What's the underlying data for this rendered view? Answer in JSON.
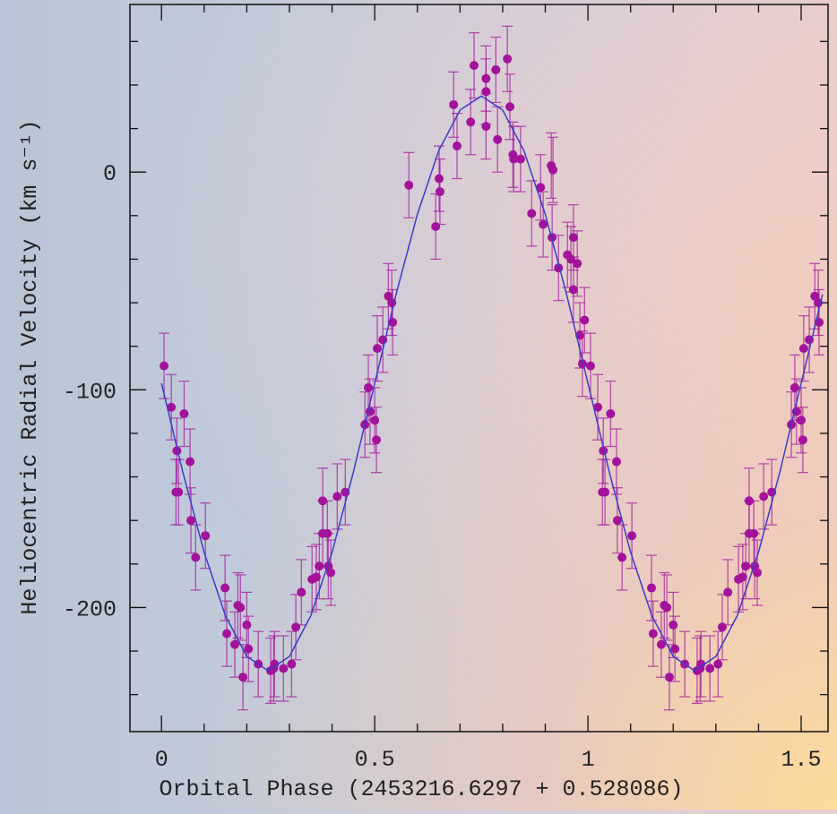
{
  "chart_data": {
    "type": "scatter",
    "xlabel": "Orbital Phase (2453216.6297 + 0.528086)",
    "ylabel": "Heliocentric Radial Velocity (km s⁻¹)",
    "xlim": [
      -0.074,
      1.563
    ],
    "ylim": [
      -257,
      77
    ],
    "xticks": [
      0,
      0.5,
      1,
      1.5
    ],
    "yticks": [
      -200,
      -100,
      0
    ],
    "xminorticks": [
      0.1,
      0.2,
      0.3,
      0.4,
      0.6,
      0.7,
      0.8,
      0.9,
      1.1,
      1.2,
      1.3,
      1.4
    ],
    "yminorticks": [
      -240,
      -220,
      -180,
      -160,
      -140,
      -120,
      -80,
      -60,
      -40,
      -20,
      20,
      40,
      60
    ],
    "series": [
      {
        "color": "#a3129b",
        "yerr": 15,
        "x": [
          0.006,
          0.023,
          0.036,
          0.034,
          0.04,
          0.053,
          0.067,
          0.069,
          0.08,
          0.103,
          0.149,
          0.153,
          0.172,
          0.179,
          0.185,
          0.191,
          0.2,
          0.204,
          0.227,
          0.256,
          0.263,
          0.265,
          0.286,
          0.305,
          0.315,
          0.328,
          0.353,
          0.363,
          0.37,
          0.378,
          0.378,
          0.389,
          0.391,
          0.397,
          0.412,
          0.431,
          0.477,
          0.485,
          0.489,
          0.5,
          0.504,
          0.506,
          0.519,
          0.532,
          0.54,
          0.542,
          0.58,
          0.643,
          0.651,
          0.653,
          0.685,
          0.693,
          0.725,
          0.733,
          0.761,
          0.761,
          0.761,
          0.784,
          0.788,
          0.811,
          0.817,
          0.824,
          0.826,
          0.842,
          0.868,
          0.889,
          0.895,
          0.914,
          0.918,
          0.916,
          0.931,
          0.952,
          0.96,
          0.966,
          0.966,
          0.975,
          0.981,
          0.987,
          0.992,
          1.006,
          1.023,
          1.036,
          1.034,
          1.04,
          1.053,
          1.067,
          1.069,
          1.08,
          1.103,
          1.149,
          1.153,
          1.172,
          1.179,
          1.185,
          1.191,
          1.2,
          1.204,
          1.227,
          1.256,
          1.263,
          1.265,
          1.286,
          1.305,
          1.315,
          1.328,
          1.353,
          1.363,
          1.37,
          1.378,
          1.378,
          1.389,
          1.391,
          1.397,
          1.412,
          1.431,
          1.477,
          1.485,
          1.489,
          1.5,
          1.504,
          1.506,
          1.519,
          1.532,
          1.54,
          1.542
        ],
        "values": [
          -89,
          -108,
          -128,
          -147,
          -147,
          -111,
          -133,
          -160,
          -177,
          -167,
          -191,
          -212,
          -217,
          -199,
          -200,
          -232,
          -208,
          -219,
          -226,
          -229,
          -228,
          -226,
          -228,
          -226,
          -209,
          -193,
          -187,
          -186,
          -181,
          -166,
          -151,
          -166,
          -181,
          -184,
          -149,
          -147,
          -116,
          -99,
          -110,
          -114,
          -123,
          -81,
          -77,
          -57,
          -60,
          -69,
          -6,
          -25,
          -3,
          -9,
          31,
          12,
          23,
          49,
          43,
          37,
          21,
          47,
          15,
          52,
          30,
          8,
          6,
          6,
          -19,
          -7,
          -24,
          3,
          1,
          -30,
          -44,
          -38,
          -40,
          -30,
          -54,
          -42,
          -75,
          -88,
          -68,
          -89,
          -108,
          -128,
          -147,
          -147,
          -111,
          -133,
          -160,
          -177,
          -167,
          -191,
          -212,
          -217,
          -199,
          -200,
          -232,
          -208,
          -219,
          -226,
          -229,
          -228,
          -226,
          -228,
          -226,
          -209,
          -193,
          -187,
          -186,
          -181,
          -166,
          -151,
          -166,
          -181,
          -184,
          -149,
          -147,
          -116,
          -99,
          -110,
          -114,
          -123,
          -81,
          -77,
          -57,
          -60,
          -69
        ]
      },
      {
        "type": "line",
        "color": "#3c3cc8",
        "x": [
          0,
          0.05,
          0.1,
          0.15,
          0.2,
          0.25,
          0.3,
          0.35,
          0.4,
          0.45,
          0.5,
          0.55,
          0.6,
          0.65,
          0.7,
          0.75,
          0.8,
          0.85,
          0.9,
          0.95,
          1,
          1.05,
          1.1,
          1.15,
          1.2,
          1.25,
          1.3,
          1.35,
          1.4,
          1.45,
          1.5,
          1.55
        ],
        "values": [
          -97,
          -137.8,
          -174.6,
          -203.8,
          -222.5,
          -229,
          -222.5,
          -203.8,
          -174.6,
          -137.8,
          -97,
          -56.2,
          -19.4,
          9.8,
          28.5,
          35,
          28.5,
          9.8,
          -19.4,
          -56.2,
          -97,
          -137.8,
          -174.6,
          -203.8,
          -222.5,
          -229,
          -222.5,
          -203.8,
          -174.6,
          -137.8,
          -97,
          -56.2
        ]
      }
    ]
  }
}
